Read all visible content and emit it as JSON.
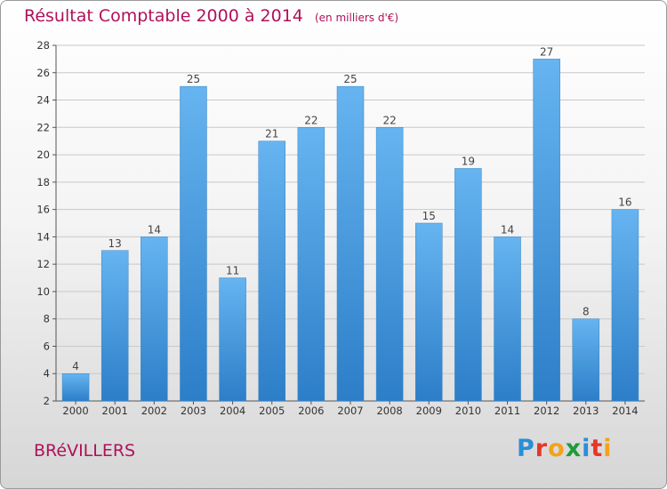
{
  "header": {
    "title": "Résultat Comptable 2000 à 2014",
    "subtitle": "(en milliers d'€)"
  },
  "commune": "BRéVILLERS",
  "logo": {
    "text": "Proxiti",
    "letter_colors": [
      "#2a8fd6",
      "#e8352b",
      "#f3a21c",
      "#1f9b3b",
      "#2a8fd6",
      "#e8352b",
      "#f3a21c"
    ]
  },
  "colors": {
    "bar_top": "#66b4f0",
    "bar_bottom": "#2c7ec8",
    "title": "#b0115a",
    "grid": "#c8c8c8"
  },
  "chart_data": {
    "type": "bar",
    "title": "Résultat Comptable 2000 à 2014",
    "subtitle": "(en milliers d'€)",
    "xlabel": "",
    "ylabel": "",
    "categories": [
      "2000",
      "2001",
      "2002",
      "2003",
      "2004",
      "2005",
      "2006",
      "2007",
      "2008",
      "2009",
      "2010",
      "2011",
      "2012",
      "2013",
      "2014"
    ],
    "values": [
      4,
      13,
      14,
      25,
      11,
      21,
      22,
      25,
      22,
      15,
      19,
      14,
      27,
      8,
      16
    ],
    "ylim": [
      2,
      28
    ],
    "yticks": [
      2,
      4,
      6,
      8,
      10,
      12,
      14,
      16,
      18,
      20,
      22,
      24,
      26,
      28
    ],
    "grid": true,
    "data_labels": true
  }
}
